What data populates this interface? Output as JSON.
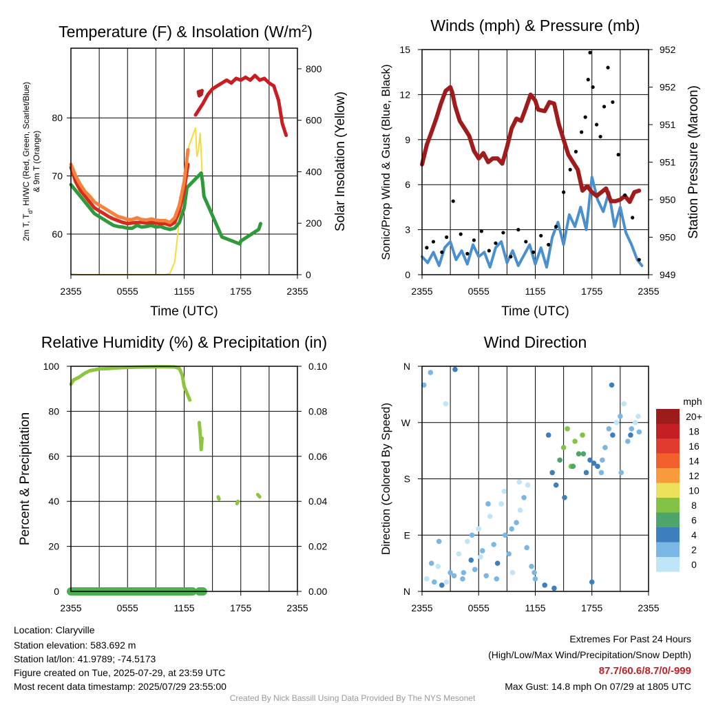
{
  "chart_data": [
    {
      "type": "line",
      "title": "Temperature (F) & Insolation (W/m",
      "title_sup": "2",
      "title_close": ")",
      "xlabel": "Time (UTC)",
      "ylabel_left_line1_pre": "2m T, T",
      "ylabel_left_line1_sub": "d",
      "ylabel_left_line1_post": ", HI/WC (Red, Green, Scarlet/Blue)",
      "ylabel_left_line2": "& 9m T (Orange)",
      "ylabel_right": "Solar Insolation (Yellow)",
      "x_ticks": [
        "2355",
        "0555",
        "1155",
        "1755",
        "2355"
      ],
      "x_range_hours": [
        0,
        24
      ],
      "ylim_left": [
        53,
        92
      ],
      "yticks_left": [
        60,
        70,
        80
      ],
      "ylim_right": [
        0,
        880
      ],
      "yticks_right": [
        0,
        200,
        400,
        600,
        800
      ],
      "grid": true,
      "series": [
        {
          "color": "#2e9a3a",
          "x": [
            0,
            0.5,
            1,
            1.5,
            2,
            2.5,
            3,
            3.5,
            4,
            4.5,
            5,
            5.5,
            6,
            6.5,
            7,
            7.5,
            8,
            8.5,
            9,
            9.5,
            10,
            10.5,
            11,
            11.5,
            12,
            12.3,
            13.8,
            13.95,
            14.1,
            16,
            17.9,
            18,
            19.9,
            20.1
          ],
          "y": [
            68.5,
            67.5,
            66.5,
            65.5,
            64.5,
            63.5,
            63,
            62.5,
            62,
            61.5,
            61.3,
            61.2,
            61,
            61,
            61.5,
            61.2,
            61.3,
            61.5,
            61.2,
            61.3,
            61,
            60.8,
            61,
            62,
            64.5,
            68,
            70.5,
            69,
            66.5,
            59.5,
            58.3,
            58.8,
            60.8,
            61.8
          ]
        },
        {
          "color": "#d62a1e",
          "x": [
            0,
            0.5,
            1,
            1.5,
            2,
            2.5,
            3,
            3.5,
            4,
            4.5,
            5,
            5.5,
            6,
            6.5,
            7,
            7.5,
            8,
            8.5,
            9,
            9.5,
            10,
            10.5,
            11,
            11.5,
            12,
            12.4
          ],
          "y": [
            71.5,
            69,
            67.5,
            66.5,
            65.5,
            64.5,
            64,
            63.5,
            63,
            62.6,
            62.3,
            62,
            61.8,
            61.9,
            62,
            62,
            61.9,
            62,
            61.9,
            61.8,
            61.8,
            61.5,
            62,
            64,
            67.5,
            72
          ]
        },
        {
          "color": "#f4823c",
          "x": [
            0,
            0.5,
            1,
            1.5,
            2,
            2.5,
            3,
            3.5,
            4,
            4.5,
            5,
            5.5,
            6,
            6.5,
            7,
            7.5,
            8,
            8.5,
            9,
            9.5,
            10,
            10.5,
            11,
            11.5,
            12,
            12.4
          ],
          "y": [
            72,
            70,
            68.5,
            67.3,
            66.5,
            65.5,
            65,
            64.5,
            64,
            63.5,
            63,
            62.8,
            62.5,
            62.5,
            62.8,
            62.5,
            62.4,
            62.6,
            62.4,
            62.3,
            62.3,
            62,
            62.8,
            65,
            69,
            74.5
          ]
        },
        {
          "color": "#b32025",
          "x": [
            13.5,
            13.6,
            13.7,
            13.8,
            13.9
          ],
          "y": [
            84.5,
            83.8,
            84.6,
            84,
            84.7
          ]
        },
        {
          "color": "#c91d22",
          "x": [
            13.2,
            13.6,
            14,
            14.5,
            15,
            15.5,
            16,
            16.5,
            17,
            17.5,
            18,
            18.5,
            19,
            19.5,
            20,
            20.5,
            21,
            21.5,
            22,
            22.4,
            22.8
          ],
          "y": [
            80.5,
            81.5,
            82.5,
            84,
            85,
            85.5,
            86,
            86.5,
            86,
            86.8,
            86.5,
            87,
            86.5,
            87.3,
            86.5,
            86.8,
            86,
            85.5,
            83,
            79,
            77
          ]
        }
      ],
      "solar": {
        "color": "#f5dc3c",
        "x": [
          0,
          1,
          2,
          3,
          4,
          5,
          6,
          7,
          8,
          9,
          10,
          10.5,
          11,
          11.3,
          11.6,
          12,
          12.3,
          12.5,
          13.2,
          13.35,
          13.5,
          13.7,
          13.9
        ],
        "y": [
          3,
          0,
          0,
          0,
          0,
          0,
          0,
          0,
          0,
          0,
          0,
          5,
          50,
          150,
          260,
          350,
          420,
          500,
          570,
          460,
          480,
          550,
          400
        ]
      }
    },
    {
      "type": "line",
      "title": "Winds (mph) & Pressure (mb)",
      "xlabel": "Time (UTC)",
      "ylabel_left": "Sonic/Prop Wind & Gust (Blue, Black)",
      "ylabel_right": "Station Pressure (Maroon)",
      "x_ticks": [
        "2355",
        "0555",
        "1155",
        "1755",
        "2355"
      ],
      "x_range_hours": [
        0,
        24
      ],
      "ylim_left": [
        0,
        15
      ],
      "yticks_left": [
        0,
        3,
        6,
        9,
        12,
        15
      ],
      "ylim_right": [
        949,
        952
      ],
      "yticks_right_labels": [
        "949",
        "950",
        "950",
        "951",
        "951",
        "952",
        "952"
      ],
      "grid": true,
      "pressure": {
        "color": "#a01c1c",
        "x": [
          0,
          0.5,
          1,
          1.5,
          2,
          2.5,
          3,
          3.2,
          3.5,
          4,
          4.5,
          5,
          5.5,
          6,
          6.5,
          7,
          7.5,
          8,
          8.5,
          9,
          9.5,
          10,
          10.5,
          11,
          11.5,
          12,
          12.3,
          13,
          13.5,
          14,
          14.5,
          15,
          15.5,
          16,
          16.5,
          17,
          17.5,
          18,
          18.5,
          19,
          19.5,
          20,
          20.5,
          21,
          21.5,
          22,
          22.5,
          23
        ],
        "y": [
          950.47,
          950.73,
          950.9,
          951.08,
          951.28,
          951.45,
          951.5,
          951.43,
          951.25,
          951.05,
          950.95,
          950.85,
          950.65,
          950.55,
          950.62,
          950.5,
          950.55,
          950.55,
          950.48,
          950.7,
          950.95,
          951.08,
          951.05,
          951.22,
          951.4,
          951.32,
          951.2,
          951.18,
          951.3,
          951.28,
          951.0,
          950.8,
          950.6,
          950.5,
          950.4,
          950.12,
          950.18,
          950.1,
          950.05,
          950.1,
          950.15,
          949.98,
          949.98,
          950.0,
          950.05,
          949.97,
          950.1,
          950.12
        ]
      },
      "wind": {
        "color": "#4a8fcf",
        "x": [
          0,
          0.6,
          1.2,
          1.8,
          2.4,
          3,
          3.6,
          4.2,
          4.8,
          5.4,
          6,
          6.6,
          7.2,
          7.8,
          8.4,
          9,
          9.6,
          10.2,
          10.8,
          11.4,
          12,
          12.6,
          13.2,
          13.8,
          14.4,
          15,
          15.6,
          16.2,
          16.8,
          17.4,
          18,
          18.6,
          19.2,
          19.8,
          20.4,
          21,
          21.6,
          22.2,
          22.8,
          23.3
        ],
        "y": [
          1.2,
          0.8,
          1.5,
          0.6,
          1.8,
          2.2,
          1.0,
          1.6,
          0.7,
          2.0,
          1.2,
          1.5,
          0.5,
          1.8,
          2.2,
          0.8,
          1.6,
          0.6,
          1.3,
          2.0,
          0.7,
          1.8,
          0.5,
          2.5,
          3.5,
          2.0,
          4.0,
          3.2,
          4.5,
          3.0,
          6.5,
          5.0,
          4.2,
          5.5,
          3.2,
          4.5,
          2.8,
          2.0,
          1.0,
          0.6
        ]
      },
      "gust_points": {
        "color": "#000000",
        "x": [
          0.5,
          1.2,
          2.1,
          2.6,
          3.3,
          4.1,
          4.8,
          5.5,
          6.3,
          7.1,
          7.8,
          8.6,
          9.4,
          10.2,
          11.0,
          11.8,
          12.6,
          13.4,
          14.2,
          15.0,
          15.7,
          16.3,
          16.9,
          17.3,
          17.6,
          17.8,
          18.1,
          18.5,
          18.9,
          19.3,
          19.7,
          20.2,
          20.8,
          21.5,
          22.3,
          23.0
        ],
        "y": [
          1.8,
          2.2,
          1.5,
          2.5,
          4.9,
          2.7,
          1.4,
          2.3,
          2.9,
          1.6,
          2.1,
          2.8,
          1.2,
          3.0,
          2.2,
          1.5,
          2.6,
          2.0,
          3.2,
          5.5,
          7.0,
          8.2,
          9.5,
          10.5,
          13.0,
          14.8,
          12.5,
          10.0,
          9.2,
          11.2,
          13.8,
          11.5,
          8.0,
          5.3,
          3.8,
          1.0
        ]
      }
    },
    {
      "type": "line",
      "title": "Relative Humidity (%) & Precipitation (in)",
      "ylabel_left": "Percent & Precipitation",
      "x_ticks": [
        "2355",
        "0555",
        "1155",
        "1755",
        "2355"
      ],
      "x_range_hours": [
        0,
        24
      ],
      "ylim_left": [
        0,
        100
      ],
      "yticks_left": [
        0,
        20,
        40,
        60,
        80,
        100
      ],
      "ylim_right": [
        0.0,
        0.1
      ],
      "yticks_right_labels": [
        "0.00",
        "0.02",
        "0.04",
        "0.06",
        "0.08",
        "0.10"
      ],
      "grid": true,
      "rh": {
        "color": "#8cc63f",
        "x": [
          0,
          0.3,
          0.8,
          1.5,
          2,
          3,
          4,
          5,
          6,
          7,
          8,
          9,
          10,
          11,
          11.5,
          11.8,
          12,
          12.3,
          12.6
        ],
        "y": [
          92,
          94,
          95,
          97,
          98,
          98.8,
          99,
          99.3,
          99.5,
          99.6,
          99.7,
          99.8,
          99.8,
          99.7,
          99,
          96,
          91,
          88,
          85
        ]
      },
      "rh_fragments": [
        {
          "x": [
            13.6,
            13.7,
            13.8,
            13.9
          ],
          "y": [
            75,
            70,
            63,
            68
          ]
        },
        {
          "x": [
            15.6,
            15.7
          ],
          "y": [
            42,
            41
          ]
        },
        {
          "x": [
            17.6,
            17.7
          ],
          "y": [
            39,
            40
          ]
        },
        {
          "x": [
            19.8,
            20.0
          ],
          "y": [
            43,
            42
          ]
        }
      ],
      "precip": {
        "color": "#4caf50",
        "segments": [
          {
            "x": [
              0,
              12.9
            ],
            "y": [
              0,
              0
            ]
          },
          {
            "x": [
              13.6,
              14.0
            ],
            "y": [
              0,
              0
            ]
          }
        ]
      }
    },
    {
      "type": "scatter",
      "title": "Wind Direction",
      "ylabel_left": "Direction (Colored By Speed)",
      "x_ticks": [
        "2355",
        "0555",
        "1155",
        "1755",
        "2355"
      ],
      "x_range_hours": [
        0,
        24
      ],
      "ylim_deg": [
        0,
        360
      ],
      "ytick_labels": [
        "N",
        "E",
        "S",
        "W",
        "N"
      ],
      "ytick_deg": [
        0,
        90,
        180,
        270,
        360
      ],
      "grid": true,
      "legend_title": "mph",
      "legend_labels": [
        "20+",
        "18",
        "16",
        "14",
        "12",
        "10",
        "8",
        "6",
        "4",
        "2",
        "0"
      ],
      "legend_colors": [
        "#9c1b1b",
        "#c51f26",
        "#e03b2e",
        "#f15f2a",
        "#f99a3c",
        "#ece15a",
        "#82c245",
        "#4da56b",
        "#3d7fbd",
        "#7ab7e4",
        "#bfe5f8"
      ],
      "points_x": [
        0.2,
        0.5,
        0.9,
        1.3,
        1.7,
        2.1,
        2.5,
        3.0,
        3.4,
        3.9,
        4.3,
        4.8,
        5.2,
        5.6,
        6.0,
        6.4,
        6.8,
        7.2,
        7.6,
        8.0,
        8.4,
        8.8,
        9.2,
        9.6,
        10.0,
        10.4,
        10.8,
        11.2,
        11.6,
        12.0,
        13.0,
        13.4,
        13.8,
        14.2,
        14.6,
        15.0,
        15.4,
        15.8,
        16.2,
        16.6,
        17.0,
        17.4,
        17.8,
        18.2,
        18.6,
        19.0,
        19.4,
        19.8,
        20.2,
        20.6,
        21.0,
        21.4,
        21.8,
        22.2,
        22.6,
        23.0,
        1.0,
        1.8,
        2.6,
        3.5,
        4.4,
        5.3,
        6.2,
        7.0,
        7.9,
        8.7,
        9.5,
        10.3,
        11.1,
        11.9,
        14.0,
        15.1,
        16.0,
        17.1,
        18.0,
        19.1,
        20.1,
        21.1,
        22.1,
        22.9
      ],
      "points_deg": [
        330,
        20,
        350,
        15,
        40,
        10,
        300,
        30,
        25,
        60,
        20,
        80,
        50,
        35,
        100,
        65,
        25,
        120,
        75,
        45,
        140,
        90,
        60,
        30,
        110,
        130,
        150,
        170,
        40,
        20,
        10,
        250,
        190,
        170,
        210,
        230,
        260,
        200,
        240,
        220,
        250,
        190,
        210,
        205,
        200,
        190,
        230,
        260,
        250,
        270,
        280,
        300,
        240,
        260,
        270,
        255,
        45,
        80,
        15,
        355,
        30,
        90,
        55,
        140,
        20,
        160,
        100,
        175,
        70,
        30,
        5,
        150,
        200,
        220,
        15,
        210,
        330,
        190,
        250,
        280
      ],
      "points_speed": [
        1,
        0,
        2,
        1,
        0,
        3,
        0,
        1,
        2,
        0,
        1,
        0,
        3,
        1,
        0,
        2,
        1,
        0,
        1,
        3,
        0,
        1,
        2,
        0,
        1,
        0,
        1,
        0,
        2,
        1,
        3,
        4,
        4,
        3,
        5,
        7,
        7,
        8,
        7,
        6,
        8,
        4,
        3,
        3,
        4,
        2,
        1,
        2,
        3,
        0,
        1,
        0,
        1,
        2,
        0,
        1,
        2,
        1,
        0,
        3,
        2,
        1,
        0,
        1,
        2,
        0,
        1,
        0,
        2,
        1,
        4,
        3,
        5,
        6,
        3,
        2,
        4,
        1,
        3,
        0
      ]
    }
  ],
  "info": {
    "location": "Location: Claryville",
    "elevation": "Station elevation: 583.692 m",
    "latlon": "Station lat/lon: 41.9789; -74.5173",
    "created": "Figure created on Tue, 2025-07-29, at 23:59 UTC",
    "recent": "Most recent data timestamp: 2025/07/29 23:55:00"
  },
  "extremes": {
    "title": "Extremes For Past 24 Hours",
    "subtitle": "(High/Low/Max Wind/Precipitation/Snow Depth)",
    "values": "87.7/60.6/8.7/0/-999",
    "values_color": "#c02128",
    "max_gust": "Max Gust: 14.8 mph On 07/29 at 1805 UTC"
  },
  "credit": "Created By Nick Bassill Using Data Provided By The NYS Mesonet"
}
